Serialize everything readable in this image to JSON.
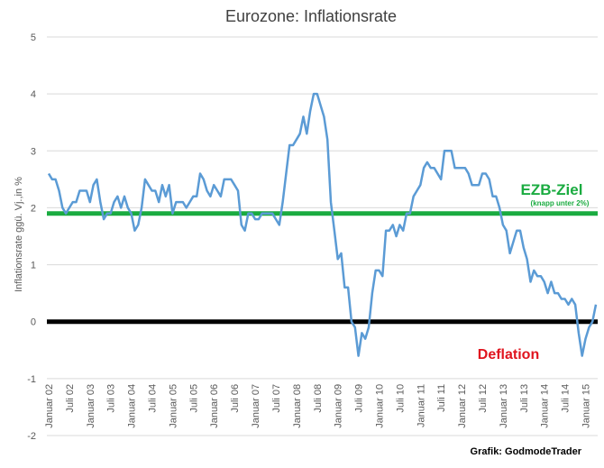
{
  "chart_data": {
    "type": "line",
    "title": "Eurozone: Inflationsrate",
    "ylabel": "Inflationsrate ggü. Vj.,in %",
    "xlabel": "",
    "ylim": [
      -2,
      5
    ],
    "yticks": [
      "-2",
      "-1",
      "0",
      "1",
      "2",
      "3",
      "4",
      "5"
    ],
    "grid": "horizontal",
    "line_color": "#5b9bd5",
    "x_tick_labels": [
      "Januar 02",
      "Juli 02",
      "Januar 03",
      "Juli 03",
      "Januar 04",
      "Juli 04",
      "Januar 05",
      "Juli 05",
      "Januar 06",
      "Juli 06",
      "Januar 07",
      "Juli 07",
      "Januar 08",
      "Juli 08",
      "Januar 09",
      "Juli 09",
      "Januar 10",
      "Juli 10",
      "Januar 11",
      "Juli 11",
      "Januar 12",
      "Juli 12",
      "Januar 13",
      "Juli 13",
      "Januar 14",
      "Juli 14",
      "Januar 15"
    ],
    "x_start": "2002-01",
    "values": [
      2.6,
      2.5,
      2.5,
      2.3,
      2.0,
      1.9,
      2.0,
      2.1,
      2.1,
      2.3,
      2.3,
      2.3,
      2.1,
      2.4,
      2.5,
      2.1,
      1.8,
      1.9,
      1.9,
      2.1,
      2.2,
      2.0,
      2.2,
      2.0,
      1.9,
      1.6,
      1.7,
      2.0,
      2.5,
      2.4,
      2.3,
      2.3,
      2.1,
      2.4,
      2.2,
      2.4,
      1.9,
      2.1,
      2.1,
      2.1,
      2.0,
      2.1,
      2.2,
      2.2,
      2.6,
      2.5,
      2.3,
      2.2,
      2.4,
      2.3,
      2.2,
      2.5,
      2.5,
      2.5,
      2.4,
      2.3,
      1.7,
      1.6,
      1.9,
      1.9,
      1.8,
      1.8,
      1.9,
      1.9,
      1.9,
      1.9,
      1.8,
      1.7,
      2.1,
      2.6,
      3.1,
      3.1,
      3.2,
      3.3,
      3.6,
      3.3,
      3.7,
      4.0,
      4.0,
      3.8,
      3.6,
      3.2,
      2.1,
      1.6,
      1.1,
      1.2,
      0.6,
      0.6,
      0.0,
      -0.1,
      -0.6,
      -0.2,
      -0.3,
      -0.1,
      0.5,
      0.9,
      0.9,
      0.8,
      1.6,
      1.6,
      1.7,
      1.5,
      1.7,
      1.6,
      1.9,
      1.9,
      2.2,
      2.3,
      2.4,
      2.7,
      2.8,
      2.7,
      2.7,
      2.6,
      2.5,
      3.0,
      3.0,
      3.0,
      2.7,
      2.7,
      2.7,
      2.7,
      2.6,
      2.4,
      2.4,
      2.4,
      2.6,
      2.6,
      2.5,
      2.2,
      2.2,
      2.0,
      1.7,
      1.6,
      1.2,
      1.4,
      1.6,
      1.6,
      1.3,
      1.1,
      0.7,
      0.9,
      0.8,
      0.8,
      0.7,
      0.5,
      0.7,
      0.5,
      0.5,
      0.4,
      0.4,
      0.3,
      0.4,
      0.3,
      -0.2,
      -0.6,
      -0.3,
      -0.1,
      0.0,
      0.3
    ],
    "reference_lines": [
      {
        "value": 1.9,
        "color": "#1aab40",
        "label": "EZB-Ziel",
        "sublabel": "(knapp unter 2%)"
      },
      {
        "value": 0,
        "color": "#000000",
        "label": "Deflation",
        "label_color": "#e0141e"
      }
    ]
  },
  "credit": "Grafik: GodmodeTrader"
}
